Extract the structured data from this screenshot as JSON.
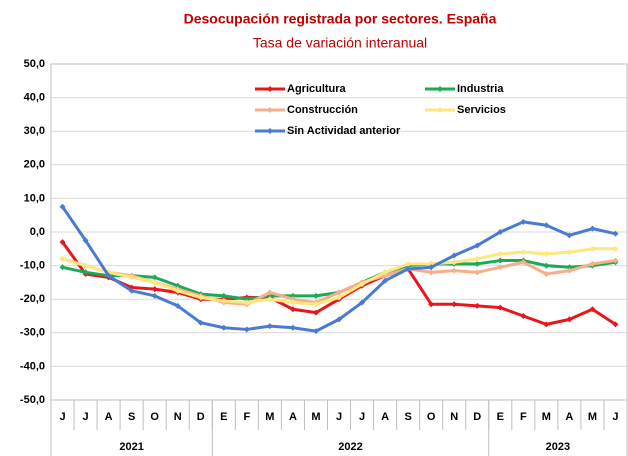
{
  "chart_data": {
    "type": "line",
    "title": "Desocupación registrada por sectores. España",
    "subtitle": "Tasa de variación interanual",
    "categories": [
      "J",
      "J",
      "A",
      "S",
      "O",
      "N",
      "D",
      "E",
      "F",
      "M",
      "A",
      "M",
      "J",
      "J",
      "A",
      "S",
      "O",
      "N",
      "D",
      "E",
      "F",
      "M",
      "A",
      "M",
      "J"
    ],
    "years": [
      {
        "label": "2021",
        "start": 0,
        "end": 6
      },
      {
        "label": "2022",
        "start": 7,
        "end": 18
      },
      {
        "label": "2023",
        "start": 19,
        "end": 24
      }
    ],
    "ylim": [
      -50,
      50
    ],
    "yticks": [
      {
        "value": -50,
        "label": "-50,0"
      },
      {
        "value": -40,
        "label": "-40,0"
      },
      {
        "value": -30,
        "label": "-30,0"
      },
      {
        "value": -20,
        "label": "-20,0"
      },
      {
        "value": -10,
        "label": "-10,0"
      },
      {
        "value": 0,
        "label": "0,0"
      },
      {
        "value": 10,
        "label": "10,0"
      },
      {
        "value": 20,
        "label": "20,0"
      },
      {
        "value": 30,
        "label": "30,0"
      },
      {
        "value": 40,
        "label": "40,0"
      },
      {
        "value": 50,
        "label": "50,0"
      }
    ],
    "grid": true,
    "legend": "top",
    "series": [
      {
        "name": "Agricultura",
        "color": "#e8161b",
        "values": [
          -3,
          -12.5,
          -13.5,
          -16.5,
          -17,
          -18,
          -20,
          -20,
          -19.5,
          -19.5,
          -23,
          -24,
          -20,
          -16,
          -13,
          -11,
          -21.5,
          -21.5,
          -22,
          -22.5,
          -25,
          -27.5,
          -26,
          -23,
          -27.5
        ]
      },
      {
        "name": "Industria",
        "color": "#1aab58",
        "values": [
          -10.5,
          -12,
          -13,
          -13,
          -13.5,
          -16,
          -18.5,
          -19,
          -20,
          -19,
          -19,
          -19,
          -18,
          -15,
          -12,
          -10,
          -9.5,
          -9.5,
          -9.5,
          -8.5,
          -8.5,
          -10,
          -10.5,
          -10,
          -9
        ]
      },
      {
        "name": "Construcción",
        "color": "#f4b08a",
        "values": [
          -8,
          -10,
          -12,
          -13,
          -15,
          -17,
          -19,
          -21,
          -21.5,
          -18,
          -20,
          -21,
          -18,
          -15,
          -13,
          -11,
          -12,
          -11.5,
          -12,
          -10.5,
          -9,
          -12.5,
          -11.5,
          -9.5,
          -8.5
        ]
      },
      {
        "name": "Servicios",
        "color": "#ffe680",
        "values": [
          -8,
          -10,
          -12,
          -13.5,
          -15,
          -17.5,
          -19.5,
          -20.5,
          -21,
          -20,
          -21,
          -21.5,
          -19.5,
          -15.5,
          -12,
          -9.5,
          -9.5,
          -9,
          -8,
          -6.5,
          -6,
          -6.5,
          -6,
          -5,
          -5
        ]
      },
      {
        "name": "Sin Actividad anterior",
        "color": "#4a7bd0",
        "values": [
          7.5,
          -2.5,
          -13,
          -17.5,
          -19,
          -22,
          -27,
          -28.5,
          -29,
          -28,
          -28.5,
          -29.5,
          -26,
          -21,
          -14.5,
          -11,
          -10.5,
          -7,
          -4,
          0,
          3,
          2,
          -1,
          1,
          -0.5
        ]
      }
    ]
  }
}
